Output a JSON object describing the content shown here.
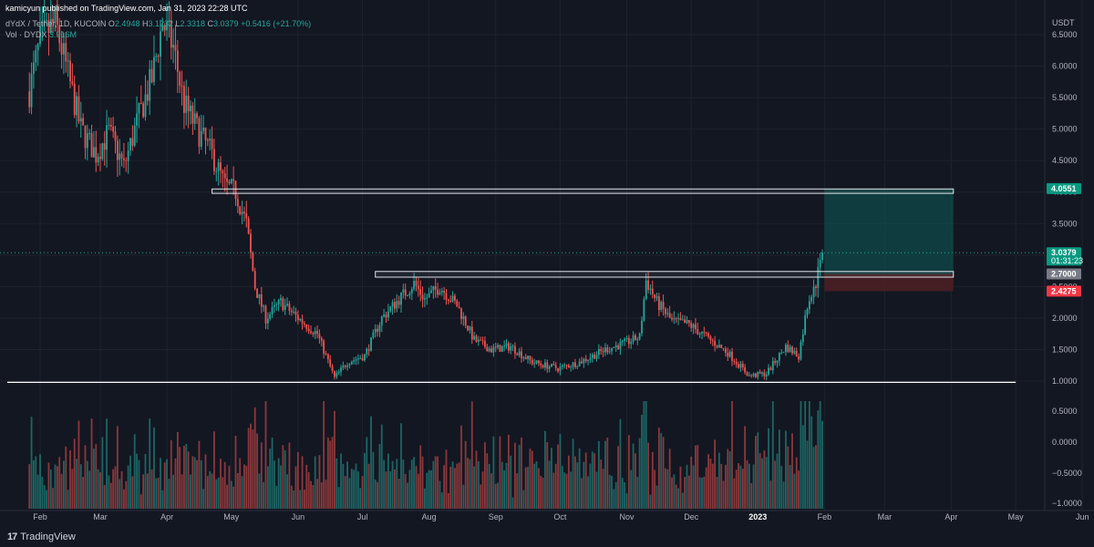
{
  "header": {
    "published": "kamicyun published on TradingView.com, Jan 31, 2023 22:28 UTC",
    "symbol": "dYdX / Tether, 1D, KUCOIN",
    "ohlc": [
      {
        "k": "O",
        "v": "2.4948"
      },
      {
        "k": "H",
        "v": "3.1232"
      },
      {
        "k": "L",
        "v": "2.3318"
      },
      {
        "k": "C",
        "v": "3.0379"
      },
      {
        "k": "",
        "v": "+0.5416 (+21.70%)"
      }
    ],
    "volume": "Vol · DYDX",
    "volume_value": "3.916M"
  },
  "footer": {
    "brand": "TradingView",
    "logo": "tv-logo-icon"
  },
  "colors": {
    "background": "#131722",
    "up": "#26a69a",
    "down": "#ef5350",
    "grid": "#1e222d",
    "support": "#ffffff",
    "target_zone": "#0f4b4a",
    "stop_zone": "#4b1f25"
  },
  "chart_data": {
    "type": "candlestick",
    "currency": "USDT",
    "price_ticks": [
      "6.5000",
      "6.0000",
      "5.5000",
      "5.0000",
      "4.5000",
      "4.0000",
      "3.5000",
      "3.0000",
      "2.5000",
      "2.0000",
      "1.5000",
      "1.0000"
    ],
    "volume_axis_ticks": [
      "0.5000",
      "0.0000",
      "−0.5000",
      "−1.0000"
    ],
    "x_ticks": [
      "Feb",
      "Mar",
      "Apr",
      "May",
      "Jun",
      "Jul",
      "Aug",
      "Sep",
      "Oct",
      "Nov",
      "Dec",
      "2023",
      "Feb",
      "Mar",
      "Apr",
      "May",
      "Jun"
    ],
    "ylim": [
      0.95,
      6.8
    ],
    "price_path": [
      [
        "2022-01-27",
        5.6
      ],
      [
        "2022-02-01",
        6.4
      ],
      [
        "2022-02-08",
        6.7
      ],
      [
        "2022-02-13",
        6.0
      ],
      [
        "2022-02-20",
        5.0
      ],
      [
        "2022-02-27",
        4.6
      ],
      [
        "2022-03-05",
        4.95
      ],
      [
        "2022-03-12",
        4.4
      ],
      [
        "2022-03-18",
        5.1
      ],
      [
        "2022-03-25",
        5.8
      ],
      [
        "2022-03-30",
        6.7
      ],
      [
        "2022-04-04",
        6.3
      ],
      [
        "2022-04-09",
        5.4
      ],
      [
        "2022-04-15",
        5.0
      ],
      [
        "2022-04-22",
        4.6
      ],
      [
        "2022-04-28",
        4.1
      ],
      [
        "2022-05-03",
        4.0
      ],
      [
        "2022-05-08",
        3.5
      ],
      [
        "2022-05-12",
        2.5
      ],
      [
        "2022-05-17",
        2.0
      ],
      [
        "2022-05-24",
        2.25
      ],
      [
        "2022-06-01",
        2.0
      ],
      [
        "2022-06-10",
        1.75
      ],
      [
        "2022-06-18",
        1.05
      ],
      [
        "2022-06-24",
        1.3
      ],
      [
        "2022-07-02",
        1.4
      ],
      [
        "2022-07-10",
        2.0
      ],
      [
        "2022-07-18",
        2.3
      ],
      [
        "2022-07-25",
        2.55
      ],
      [
        "2022-07-30",
        2.3
      ],
      [
        "2022-08-06",
        2.5
      ],
      [
        "2022-08-14",
        2.2
      ],
      [
        "2022-08-22",
        1.65
      ],
      [
        "2022-08-30",
        1.5
      ],
      [
        "2022-09-08",
        1.55
      ],
      [
        "2022-09-18",
        1.3
      ],
      [
        "2022-09-30",
        1.2
      ],
      [
        "2022-10-10",
        1.3
      ],
      [
        "2022-10-22",
        1.5
      ],
      [
        "2022-10-31",
        1.6
      ],
      [
        "2022-11-07",
        1.7
      ],
      [
        "2022-11-10",
        2.6
      ],
      [
        "2022-11-15",
        2.25
      ],
      [
        "2022-11-22",
        1.95
      ],
      [
        "2022-11-30",
        1.9
      ],
      [
        "2022-12-08",
        1.7
      ],
      [
        "2022-12-18",
        1.45
      ],
      [
        "2022-12-28",
        1.08
      ],
      [
        "2023-01-05",
        1.12
      ],
      [
        "2023-01-14",
        1.55
      ],
      [
        "2023-01-20",
        1.4
      ],
      [
        "2023-01-24",
        2.2
      ],
      [
        "2023-01-28",
        2.55
      ],
      [
        "2023-01-31",
        3.04
      ]
    ],
    "levels": [
      {
        "name": "resistance-zone-upper",
        "from": "2022-04-22",
        "to": "2023-04-02",
        "low": 3.98,
        "high": 4.05
      },
      {
        "name": "resistance-zone-mid",
        "from": "2022-07-07",
        "to": "2023-04-02",
        "low": 2.65,
        "high": 2.74
      },
      {
        "name": "support-line",
        "from": "2022-01-01",
        "to": "2023-05-01",
        "price": 0.98
      }
    ],
    "position": {
      "from": "2023-02-01",
      "to": "2023-04-02",
      "entry": 2.7,
      "target": 4.0551,
      "stop": 2.4275
    },
    "price_tags": [
      {
        "value": "4.0551",
        "price": 4.0551,
        "color": "#089981"
      },
      {
        "value": "3.0379",
        "price": 3.0379,
        "color": "#089981",
        "sub": "01:31:23"
      },
      {
        "value": "2.7000",
        "price": 2.7,
        "color": "#787b86"
      },
      {
        "value": "2.4275",
        "price": 2.4275,
        "color": "#f23645"
      }
    ],
    "last_price": 3.0379
  }
}
